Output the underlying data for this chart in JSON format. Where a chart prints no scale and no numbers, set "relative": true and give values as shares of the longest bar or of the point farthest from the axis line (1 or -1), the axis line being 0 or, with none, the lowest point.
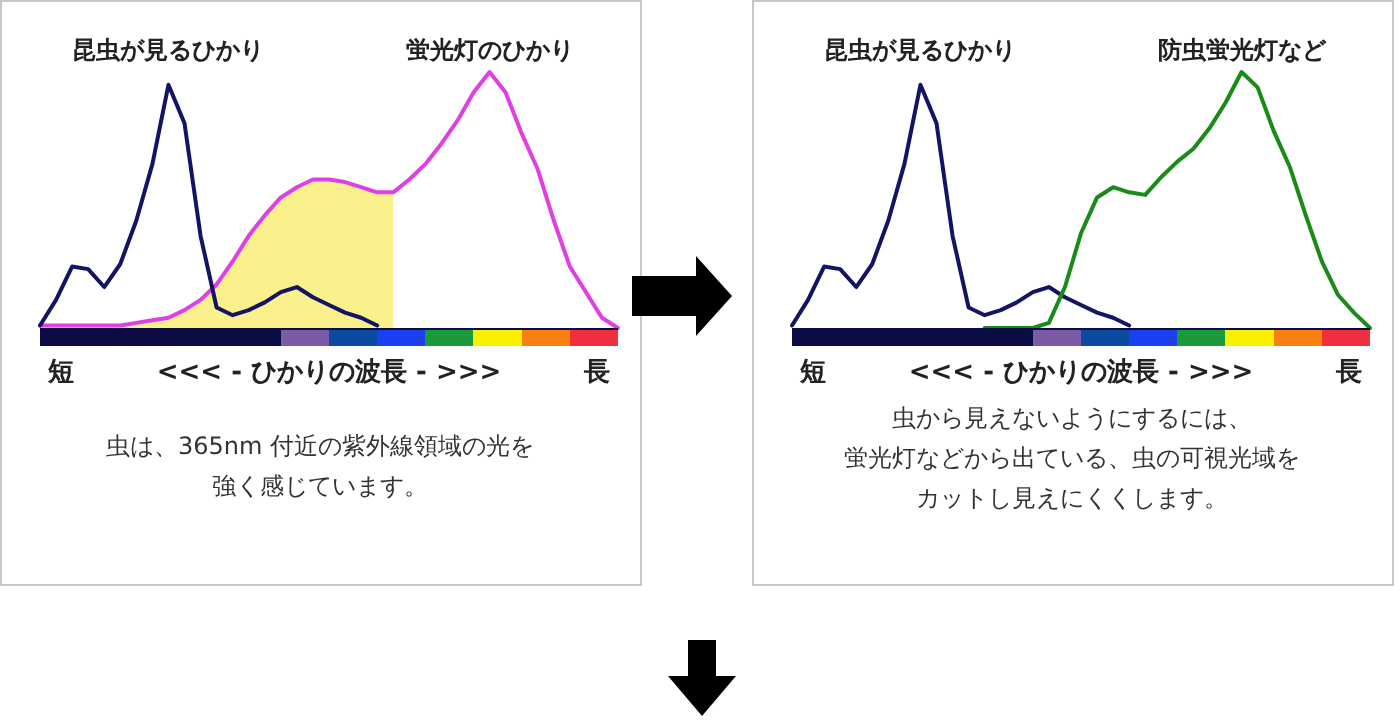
{
  "chart_data": [
    {
      "type": "line",
      "relative": true,
      "categories": [
        null,
        null,
        null,
        null,
        null,
        null,
        null,
        null,
        null,
        null,
        null,
        null,
        null,
        null,
        null,
        null,
        null,
        null,
        null,
        null,
        null,
        null,
        null,
        null,
        null,
        null,
        null,
        null,
        null,
        null,
        null,
        null,
        null,
        null,
        null,
        null,
        null
      ],
      "xlabel": "短 <<< - ひかりの波長 - >>> 長",
      "series": [
        {
          "type": "area",
          "color": "#faf08c",
          "values": [
            0.01,
            0.01,
            0.01,
            0.01,
            0.01,
            0.01,
            0.02,
            0.03,
            0.04,
            0.07,
            0.11,
            0.17,
            0.26,
            0.36,
            0.44,
            0.51,
            0.55,
            0.58,
            0.58,
            0.57,
            0.55,
            0.53,
            0.53,
            null,
            null,
            null,
            null,
            null,
            null,
            null,
            null,
            null,
            null,
            null,
            null,
            null,
            null
          ]
        },
        {
          "name": "蛍光灯のひかり",
          "color": "#e040e0",
          "values": [
            0.01,
            0.01,
            0.01,
            0.01,
            0.01,
            0.01,
            0.02,
            0.03,
            0.04,
            0.07,
            0.11,
            0.17,
            0.26,
            0.36,
            0.44,
            0.51,
            0.55,
            0.58,
            0.58,
            0.57,
            0.55,
            0.53,
            0.53,
            0.58,
            0.64,
            0.72,
            0.81,
            0.92,
            1,
            0.92,
            0.76,
            0.62,
            0.42,
            0.24,
            0.14,
            0.04,
            0
          ]
        },
        {
          "name": "昆虫が見るひかり",
          "color": "#141464",
          "values": [
            0.01,
            0.11,
            0.24,
            0.23,
            0.16,
            0.25,
            0.42,
            0.64,
            0.95,
            0.8,
            0.36,
            0.08,
            0.05,
            0.07,
            0.1,
            0.14,
            0.16,
            0.12,
            0.09,
            0.06,
            0.04,
            0.01,
            null,
            null,
            null,
            null,
            null,
            null,
            null,
            null,
            null,
            null,
            null,
            null,
            null,
            null,
            null
          ]
        }
      ],
      "annotations": [
        "虫は、365nm 付近の紫外線領域の光を強く感じています。"
      ]
    },
    {
      "type": "line",
      "relative": true,
      "categories": [
        null,
        null,
        null,
        null,
        null,
        null,
        null,
        null,
        null,
        null,
        null,
        null,
        null,
        null,
        null,
        null,
        null,
        null,
        null,
        null,
        null,
        null,
        null,
        null,
        null,
        null,
        null,
        null,
        null,
        null,
        null,
        null,
        null,
        null,
        null,
        null,
        null
      ],
      "xlabel": "短 <<< - ひかりの波長 - >>> 長",
      "series": [
        {
          "name": "昆虫が見るひかり",
          "color": "#141464",
          "values": [
            0.01,
            0.11,
            0.24,
            0.23,
            0.16,
            0.25,
            0.42,
            0.64,
            0.95,
            0.8,
            0.36,
            0.08,
            0.05,
            0.07,
            0.1,
            0.14,
            0.16,
            0.12,
            0.09,
            0.06,
            0.04,
            0.01,
            null,
            null,
            null,
            null,
            null,
            null,
            null,
            null,
            null,
            null,
            null,
            null,
            null,
            null,
            null
          ]
        },
        {
          "name": "防虫蛍光灯など",
          "color": "#1a8a1a",
          "values": [
            null,
            null,
            null,
            null,
            null,
            null,
            null,
            null,
            null,
            null,
            null,
            null,
            0,
            0,
            0,
            0,
            0.02,
            0.16,
            0.37,
            0.51,
            0.55,
            0.53,
            0.52,
            0.59,
            0.65,
            0.7,
            0.78,
            0.88,
            1,
            0.94,
            0.77,
            0.63,
            0.44,
            0.26,
            0.13,
            0.06,
            0
          ]
        }
      ],
      "annotations": [
        "虫から見えないようにするには、蛍光灯などから出ている、虫の可視光域をカットし見えにくくします。"
      ]
    }
  ]
}
